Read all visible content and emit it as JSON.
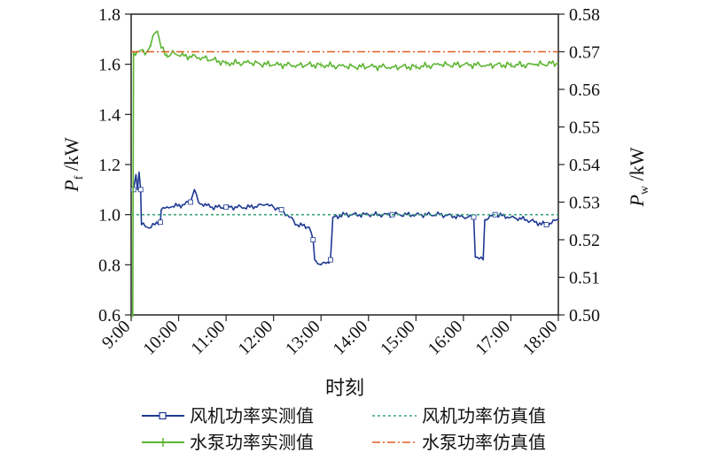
{
  "chart_data": {
    "type": "line",
    "xlabel": "时刻",
    "ylabel_left": {
      "main": "P",
      "sub": "f",
      "unit": " /kW"
    },
    "ylabel_right": {
      "main": "P",
      "sub": "w",
      "unit": " /kW"
    },
    "x_ticks": [
      "9:00",
      "10:00",
      "11:00",
      "12:00",
      "13:00",
      "14:00",
      "15:00",
      "16:00",
      "17:00",
      "18:00"
    ],
    "y_left": {
      "range": [
        0.6,
        1.8
      ],
      "ticks": [
        "0.6",
        "0.8",
        "1.0",
        "1.2",
        "1.4",
        "1.6",
        "1.8"
      ]
    },
    "y_right": {
      "range": [
        0.5,
        0.58
      ],
      "ticks": [
        "0.50",
        "0.51",
        "0.52",
        "0.53",
        "0.54",
        "0.55",
        "0.56",
        "0.57",
        "0.58"
      ]
    },
    "grid": false,
    "legend": {
      "placement": "bottom",
      "columns": 2
    },
    "series": [
      {
        "name": "风机功率实测值",
        "axis": "left",
        "style": "solid-marker",
        "color": "#1f3a93",
        "points": [
          [
            "9:00",
            1.1
          ],
          [
            "9:03",
            1.1
          ],
          [
            "9:06",
            1.16
          ],
          [
            "9:08",
            1.1
          ],
          [
            "9:10",
            1.17
          ],
          [
            "9:12",
            1.1
          ],
          [
            "9:13",
            0.96
          ],
          [
            "9:20",
            0.95
          ],
          [
            "9:30",
            0.96
          ],
          [
            "9:37",
            0.97
          ],
          [
            "9:38",
            1.02
          ],
          [
            "9:50",
            1.03
          ],
          [
            "10:05",
            1.04
          ],
          [
            "10:15",
            1.05
          ],
          [
            "10:20",
            1.1
          ],
          [
            "10:25",
            1.05
          ],
          [
            "10:40",
            1.03
          ],
          [
            "11:00",
            1.03
          ],
          [
            "11:30",
            1.03
          ],
          [
            "11:50",
            1.04
          ],
          [
            "12:00",
            1.03
          ],
          [
            "12:10",
            1.02
          ],
          [
            "12:20",
            0.99
          ],
          [
            "12:30",
            0.96
          ],
          [
            "12:45",
            0.95
          ],
          [
            "12:50",
            0.9
          ],
          [
            "12:52",
            0.82
          ],
          [
            "13:00",
            0.8
          ],
          [
            "13:08",
            0.81
          ],
          [
            "13:12",
            0.82
          ],
          [
            "13:15",
            0.99
          ],
          [
            "13:30",
            1.0
          ],
          [
            "14:00",
            1.0
          ],
          [
            "14:30",
            1.0
          ],
          [
            "15:00",
            1.0
          ],
          [
            "15:30",
            1.0
          ],
          [
            "16:00",
            0.99
          ],
          [
            "16:13",
            0.99
          ],
          [
            "16:15",
            0.83
          ],
          [
            "16:25",
            0.82
          ],
          [
            "16:27",
            0.98
          ],
          [
            "16:40",
            1.0
          ],
          [
            "17:00",
            0.99
          ],
          [
            "17:20",
            0.98
          ],
          [
            "17:30",
            0.97
          ],
          [
            "17:45",
            0.96
          ],
          [
            "18:00",
            0.98
          ]
        ]
      },
      {
        "name": "风机功率仿真值",
        "axis": "left",
        "style": "dotted",
        "color": "#3aa37a",
        "points": [
          [
            "9:00",
            1.0
          ],
          [
            "18:00",
            1.0
          ]
        ]
      },
      {
        "name": "水泵功率实测值",
        "axis": "right",
        "style": "solid-marker",
        "color": "#5cb531",
        "points": [
          [
            "9:00",
            0.5
          ],
          [
            "9:02",
            0.5
          ],
          [
            "9:03",
            0.57
          ],
          [
            "9:10",
            0.57
          ],
          [
            "9:20",
            0.57
          ],
          [
            "9:25",
            0.572
          ],
          [
            "9:30",
            0.575
          ],
          [
            "9:33",
            0.5755
          ],
          [
            "9:38",
            0.571
          ],
          [
            "9:45",
            0.569
          ],
          [
            "9:55",
            0.5695
          ],
          [
            "10:00",
            0.569
          ],
          [
            "10:30",
            0.5685
          ],
          [
            "11:00",
            0.567
          ],
          [
            "11:30",
            0.567
          ],
          [
            "12:00",
            0.5665
          ],
          [
            "12:30",
            0.5665
          ],
          [
            "13:00",
            0.5665
          ],
          [
            "13:30",
            0.566
          ],
          [
            "14:00",
            0.566
          ],
          [
            "14:30",
            0.566
          ],
          [
            "15:00",
            0.566
          ],
          [
            "15:30",
            0.5665
          ],
          [
            "16:00",
            0.5665
          ],
          [
            "16:30",
            0.5665
          ],
          [
            "17:00",
            0.5665
          ],
          [
            "17:30",
            0.5665
          ],
          [
            "18:00",
            0.567
          ]
        ]
      },
      {
        "name": "水泵功率仿真值",
        "axis": "right",
        "style": "dash-dot",
        "color": "#e25b22",
        "points": [
          [
            "9:00",
            0.57
          ],
          [
            "18:00",
            0.57
          ]
        ]
      }
    ]
  }
}
